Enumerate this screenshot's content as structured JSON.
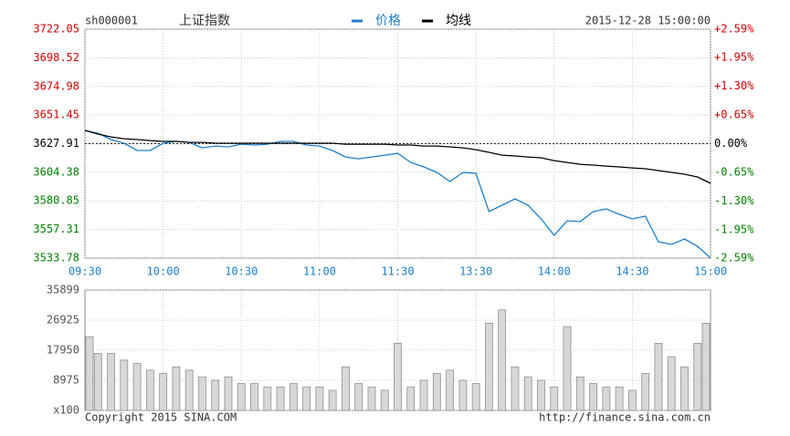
{
  "header": {
    "code": "sh000001",
    "name": "上证指数",
    "datetime": "2015-12-28 15:00:00"
  },
  "footer": {
    "copyright": "Copyright 2015 SINA.COM",
    "url": "http://finance.sina.com.cn"
  },
  "chart_data": [
    {
      "type": "line",
      "grid": true,
      "up_color": "#d00000",
      "down_color": "#008000",
      "xtick_color": "#1e7fc8",
      "xlim": [
        0,
        240
      ],
      "xticks": [
        {
          "value": 0,
          "label": "09:30"
        },
        {
          "value": 30,
          "label": "10:00"
        },
        {
          "value": 60,
          "label": "10:30"
        },
        {
          "value": 90,
          "label": "11:00"
        },
        {
          "value": 120,
          "label": "11:30"
        },
        {
          "value": 150,
          "label": "13:30"
        },
        {
          "value": 180,
          "label": "14:00"
        },
        {
          "value": 210,
          "label": "14:30"
        },
        {
          "value": 240,
          "label": "15:00"
        }
      ],
      "ylim": [
        3533.78,
        3722.05
      ],
      "yticks": [
        3722.05,
        3698.52,
        3674.98,
        3651.45,
        3627.91,
        3604.38,
        3580.85,
        3557.31,
        3533.78
      ],
      "y2lim": [
        -2.59,
        2.59
      ],
      "y2ticks": [
        {
          "value": 2.59,
          "label": "+2.59%"
        },
        {
          "value": 1.95,
          "label": "+1.95%"
        },
        {
          "value": 1.3,
          "label": "+1.30%"
        },
        {
          "value": 0.65,
          "label": "+0.65%"
        },
        {
          "value": 0,
          "label": "0.00%"
        },
        {
          "value": -0.65,
          "label": "-0.65%"
        },
        {
          "value": -1.3,
          "label": "-1.30%"
        },
        {
          "value": -1.95,
          "label": "-1.95%"
        },
        {
          "value": -2.59,
          "label": "-2.59%"
        }
      ],
      "x": [
        0,
        5,
        10,
        15,
        20,
        25,
        30,
        35,
        40,
        45,
        50,
        55,
        60,
        65,
        70,
        75,
        80,
        85,
        90,
        95,
        100,
        105,
        110,
        115,
        120,
        125,
        130,
        135,
        140,
        145,
        150,
        155,
        160,
        165,
        170,
        175,
        180,
        185,
        190,
        195,
        200,
        205,
        210,
        215,
        220,
        225,
        230,
        235,
        240
      ],
      "series": [
        {
          "name": "价格",
          "color": "#1e7fc8",
          "values": [
            3638.8,
            3636.5,
            3631.3,
            3628.3,
            3622.3,
            3622.3,
            3628.3,
            3629.8,
            3629.0,
            3624.5,
            3626.0,
            3625.3,
            3627.5,
            3626.8,
            3627.5,
            3629.8,
            3629.8,
            3626.8,
            3626.0,
            3622.3,
            3617.0,
            3615.5,
            3617.0,
            3618.5,
            3620.0,
            3612.5,
            3608.8,
            3604.3,
            3596.8,
            3604.3,
            3603.5,
            3572.0,
            3577.3,
            3582.5,
            3577.3,
            3566.0,
            3552.5,
            3564.5,
            3563.8,
            3572.0,
            3574.3,
            3569.8,
            3566.0,
            3568.3,
            3547.3,
            3545.0,
            3549.5,
            3543.5,
            3533.8
          ]
        },
        {
          "name": "均线",
          "color": "#000000",
          "values": [
            3638.8,
            3635.8,
            3633.5,
            3632.0,
            3631.3,
            3630.5,
            3629.8,
            3629.8,
            3629.0,
            3629.0,
            3628.3,
            3628.3,
            3628.3,
            3628.3,
            3628.3,
            3628.3,
            3628.3,
            3628.3,
            3628.3,
            3628.3,
            3627.5,
            3627.5,
            3627.5,
            3627.5,
            3626.8,
            3626.8,
            3626.0,
            3626.0,
            3625.3,
            3624.5,
            3623.0,
            3620.8,
            3618.5,
            3617.8,
            3617.0,
            3616.3,
            3614.0,
            3612.5,
            3611.0,
            3610.3,
            3609.5,
            3608.8,
            3608.0,
            3607.3,
            3605.8,
            3604.3,
            3602.8,
            3600.5,
            3595.3
          ]
        }
      ]
    },
    {
      "type": "bar",
      "color": "#909090",
      "xlim": [
        0,
        240
      ],
      "ylim": [
        0,
        35899
      ],
      "yticks": [
        {
          "value": 0,
          "label": "x100"
        },
        8975,
        17950,
        26925,
        35899
      ],
      "x": [
        0,
        5,
        10,
        15,
        20,
        25,
        30,
        35,
        40,
        45,
        50,
        55,
        60,
        65,
        70,
        75,
        80,
        85,
        90,
        95,
        100,
        105,
        110,
        115,
        120,
        125,
        130,
        135,
        140,
        145,
        150,
        155,
        160,
        165,
        170,
        175,
        180,
        185,
        190,
        195,
        200,
        205,
        210,
        215,
        220,
        225,
        230,
        235,
        240
      ],
      "values": [
        22000,
        17000,
        17000,
        15000,
        14000,
        12000,
        11000,
        13000,
        12000,
        10000,
        9000,
        10000,
        8000,
        8000,
        7000,
        7000,
        8000,
        7000,
        7000,
        6000,
        13000,
        8000,
        7000,
        6000,
        20000,
        7000,
        9000,
        11000,
        12000,
        9000,
        8000,
        26000,
        30000,
        13000,
        10000,
        9000,
        7000,
        25000,
        10000,
        8000,
        7000,
        7000,
        6000,
        11000,
        20000,
        16000,
        13000,
        20000,
        26000
      ]
    }
  ]
}
